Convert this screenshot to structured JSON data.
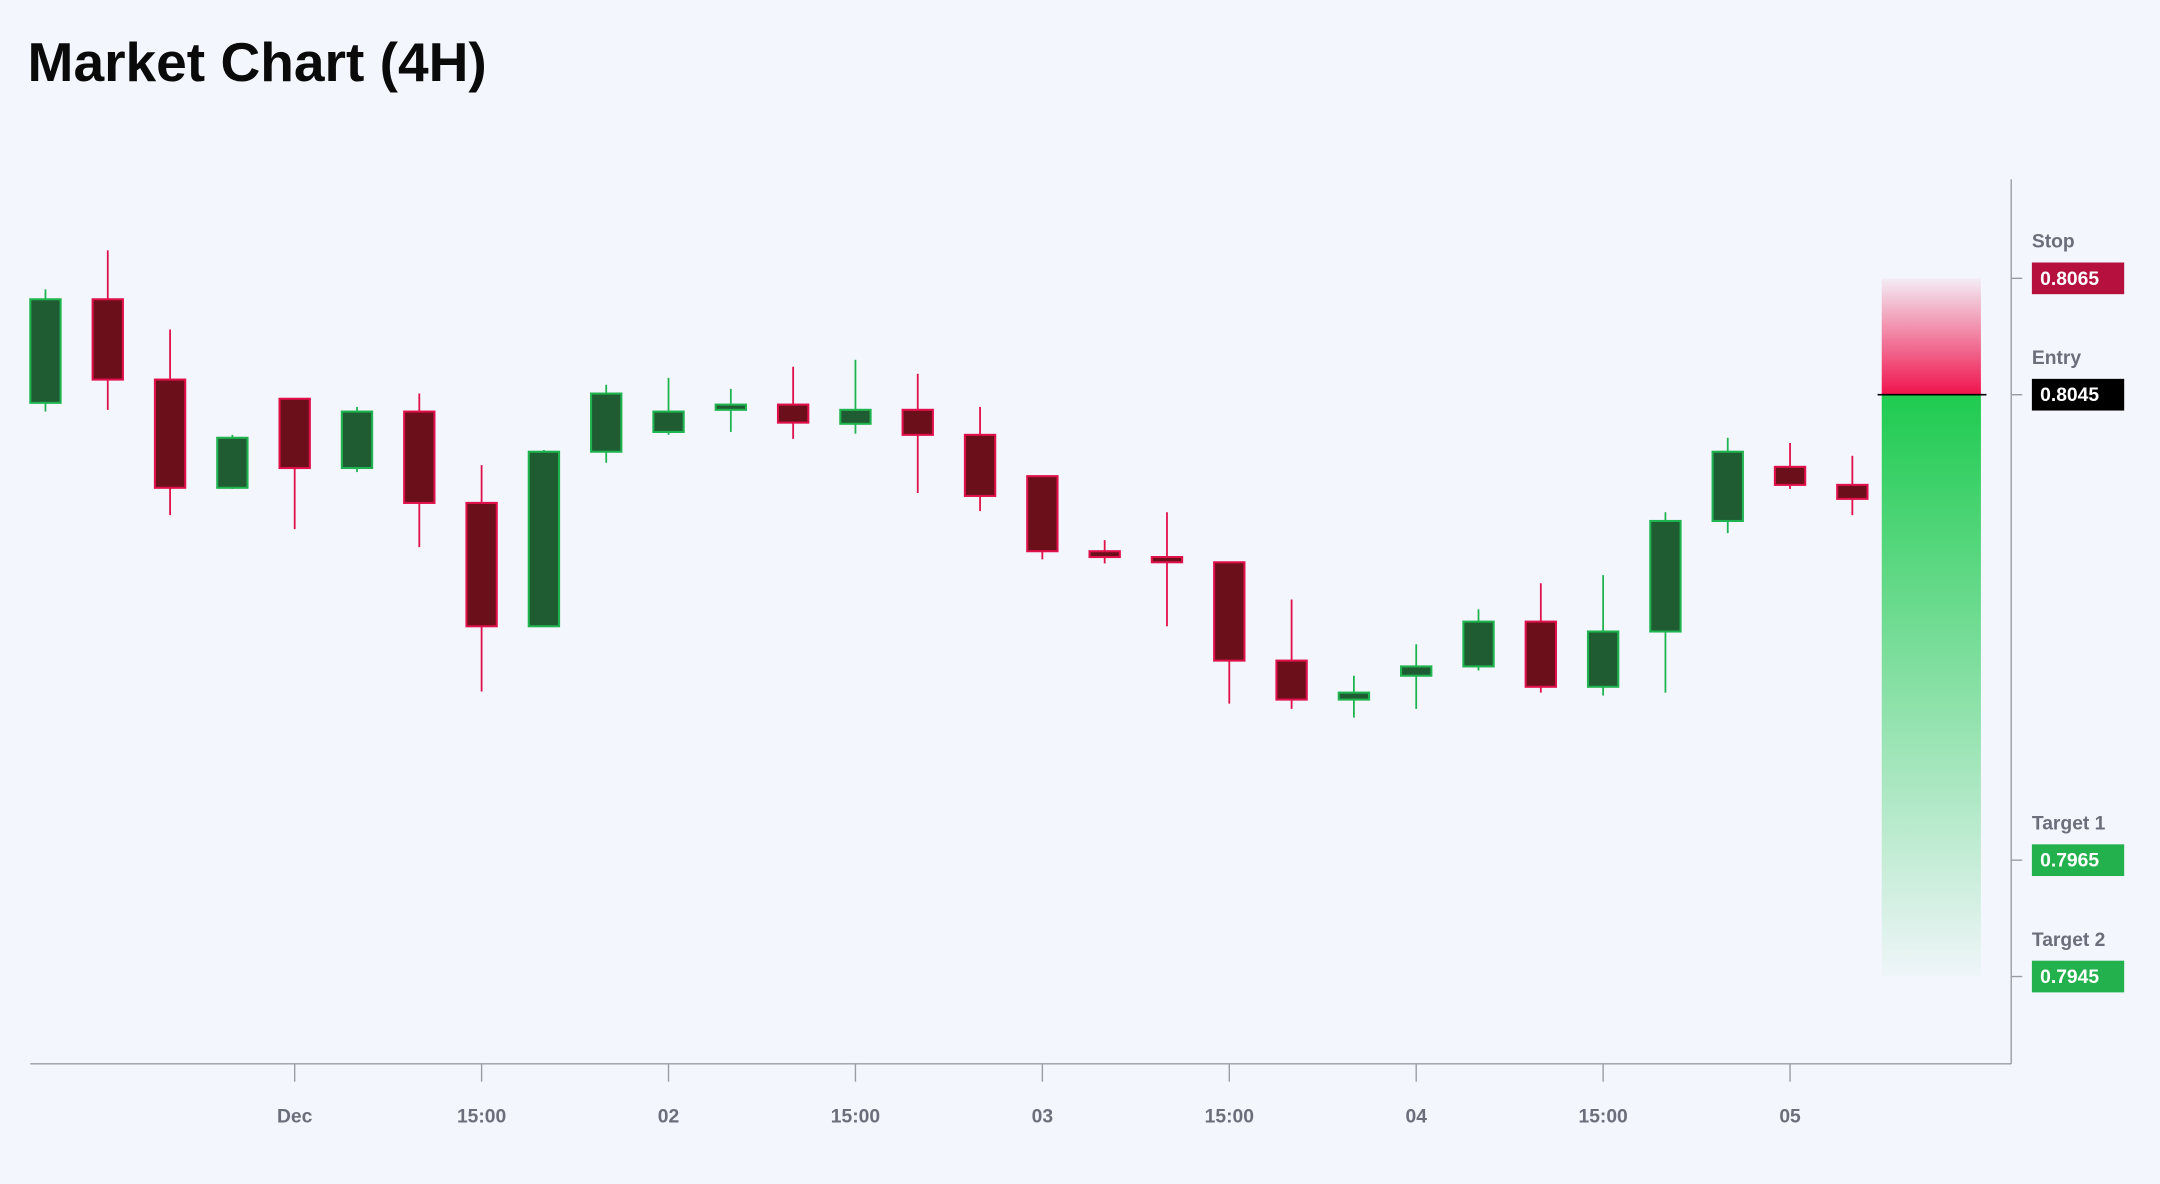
{
  "chart_data": {
    "type": "candlestick",
    "title": "Market Chart (4H)",
    "categories": [
      null,
      null,
      null,
      null,
      "Dec",
      null,
      null,
      "15:00",
      null,
      null,
      "02",
      null,
      null,
      "15:00",
      null,
      null,
      "03",
      null,
      null,
      "15:00",
      null,
      null,
      "04",
      null,
      null,
      "15:00",
      null,
      null,
      "05",
      null
    ],
    "open": [
      0.80436,
      0.80614,
      0.80476,
      0.8029,
      0.80443,
      0.80324,
      0.80421,
      0.80264,
      0.80052,
      0.80352,
      0.80386,
      0.80424,
      0.80433,
      0.804,
      0.80424,
      0.80381,
      0.8031,
      0.80181,
      0.80171,
      0.80162,
      0.79993,
      0.79926,
      0.79967,
      0.79983,
      0.8006,
      0.79948,
      0.80043,
      0.80233,
      0.80326,
      0.80295
    ],
    "high": [
      0.80631,
      0.80698,
      0.80562,
      0.80381,
      0.80443,
      0.80429,
      0.80452,
      0.80329,
      0.80355,
      0.80467,
      0.80479,
      0.8046,
      0.80498,
      0.8051,
      0.80486,
      0.80429,
      0.8031,
      0.802,
      0.80248,
      0.80162,
      0.80098,
      0.79967,
      0.80021,
      0.80081,
      0.80126,
      0.8014,
      0.80248,
      0.80376,
      0.80367,
      0.80345
    ],
    "low": [
      0.80421,
      0.80424,
      0.80243,
      0.80288,
      0.80219,
      0.80317,
      0.80188,
      0.7994,
      0.80052,
      0.80333,
      0.80381,
      0.80386,
      0.80374,
      0.80383,
      0.80281,
      0.8025,
      0.80167,
      0.8016,
      0.80052,
      0.79919,
      0.7991,
      0.79895,
      0.7991,
      0.79976,
      0.79938,
      0.79933,
      0.79938,
      0.80212,
      0.80288,
      0.80243
    ],
    "close": [
      0.80614,
      0.80476,
      0.8029,
      0.80376,
      0.80324,
      0.80421,
      0.80264,
      0.80052,
      0.80352,
      0.80452,
      0.80421,
      0.80433,
      0.80402,
      0.80424,
      0.80381,
      0.80276,
      0.80181,
      0.80171,
      0.80162,
      0.79993,
      0.79926,
      0.79938,
      0.79983,
      0.8006,
      0.79948,
      0.80043,
      0.80233,
      0.80352,
      0.80295,
      0.80271
    ],
    "ylim": [
      0.793,
      0.8082
    ],
    "up_fill": "#1f5c32",
    "up_stroke": "#1fb44f",
    "down_fill": "#6b0f1a",
    "down_stroke": "#e0104a",
    "levels": [
      {
        "name": "Stop",
        "value": 0.8065,
        "color": "#b5103e"
      },
      {
        "name": "Entry",
        "value": 0.8045,
        "color": "#000000"
      },
      {
        "name": "Target 1",
        "value": 0.7965,
        "color": "#22b14c"
      },
      {
        "name": "Target 2",
        "value": 0.7945,
        "color": "#22b14c"
      }
    ],
    "risk_color": "#f0134d",
    "reward_color": "#1ecb50"
  }
}
